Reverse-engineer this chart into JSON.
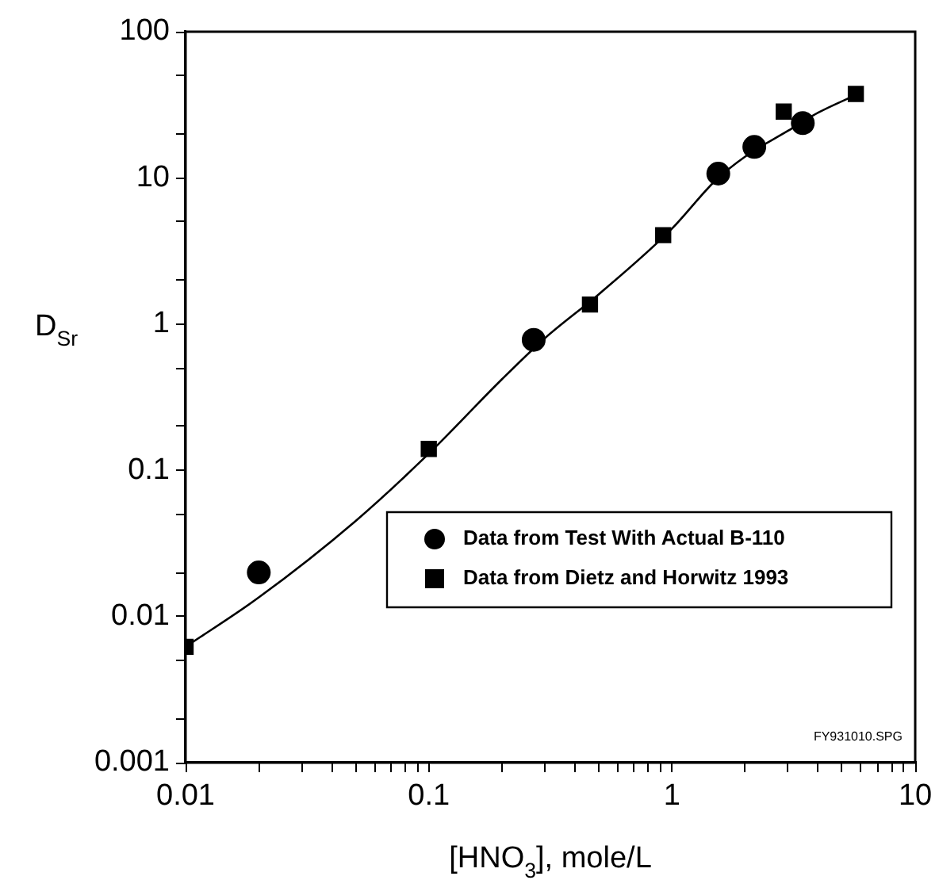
{
  "chart_data": {
    "type": "scatter",
    "xlabel": "[HNO$_{3}$], mole/L",
    "ylabel": "D$_{Sr}$",
    "log": "xy",
    "grid": false,
    "legend": "bottom right",
    "xlim": [
      0.01,
      10
    ],
    "ylim": [
      0.001,
      100
    ],
    "xticks": [
      0.01,
      {
        "value": 0.02,
        "label": null
      },
      {
        "value": 0.03,
        "label": null
      },
      {
        "value": 0.04,
        "label": null
      },
      {
        "value": 0.05,
        "label": null
      },
      {
        "value": 0.06,
        "label": null
      },
      {
        "value": 0.07,
        "label": null
      },
      {
        "value": 0.08,
        "label": null
      },
      {
        "value": 0.09,
        "label": null
      },
      0.1,
      {
        "value": 0.2,
        "label": null
      },
      {
        "value": 0.3,
        "label": null
      },
      {
        "value": 0.4,
        "label": null
      },
      {
        "value": 0.5,
        "label": null
      },
      {
        "value": 0.6,
        "label": null
      },
      {
        "value": 0.7,
        "label": null
      },
      {
        "value": 0.8,
        "label": null
      },
      {
        "value": 0.9,
        "label": null
      },
      1,
      {
        "value": 2,
        "label": null
      },
      {
        "value": 3,
        "label": null
      },
      {
        "value": 4,
        "label": null
      },
      {
        "value": 5,
        "label": null
      },
      {
        "value": 6,
        "label": null
      },
      {
        "value": 7,
        "label": null
      },
      {
        "value": 8,
        "label": null
      },
      {
        "value": 9,
        "label": null
      },
      10
    ],
    "yticks": [
      0.001,
      {
        "value": 0.002,
        "label": null
      },
      {
        "value": 0.005,
        "label": null
      },
      0.01,
      {
        "value": 0.02,
        "label": null
      },
      {
        "value": 0.05,
        "label": null
      },
      0.1,
      {
        "value": 0.2,
        "label": null
      },
      {
        "value": 0.5,
        "label": null
      },
      1,
      {
        "value": 2,
        "label": null
      },
      {
        "value": 5,
        "label": null
      },
      10,
      {
        "value": 20,
        "label": null
      },
      {
        "value": 50,
        "label": null
      },
      100
    ],
    "series": [
      {
        "type": "line",
        "color": "#000000",
        "marker": "none",
        "line_style": "solid",
        "x": [
          0.01,
          0.02,
          0.05,
          0.1,
          0.2,
          0.3,
          0.5,
          1,
          1.5,
          2,
          3,
          4,
          5.5
        ],
        "values": [
          0.0062,
          0.0135,
          0.045,
          0.13,
          0.42,
          0.8,
          1.6,
          4.5,
          9.5,
          14,
          21,
          28,
          36
        ]
      },
      {
        "name": "Data from Test With Actual B-110",
        "color": "#000000",
        "marker": "circle",
        "x": [
          0.02,
          0.27,
          1.55,
          2.18,
          3.45
        ],
        "values": [
          0.02,
          0.78,
          10.7,
          16.3,
          23.7
        ]
      },
      {
        "name": "Data from Dietz and Horwitz 1993",
        "color": "#000000",
        "marker": "square",
        "x": [
          0.01,
          0.1,
          0.46,
          0.92,
          2.88,
          5.7
        ],
        "values": [
          0.0062,
          0.14,
          1.36,
          4.06,
          28.4,
          37.5
        ]
      }
    ],
    "annotations": [
      "FY931010.SPG"
    ]
  }
}
